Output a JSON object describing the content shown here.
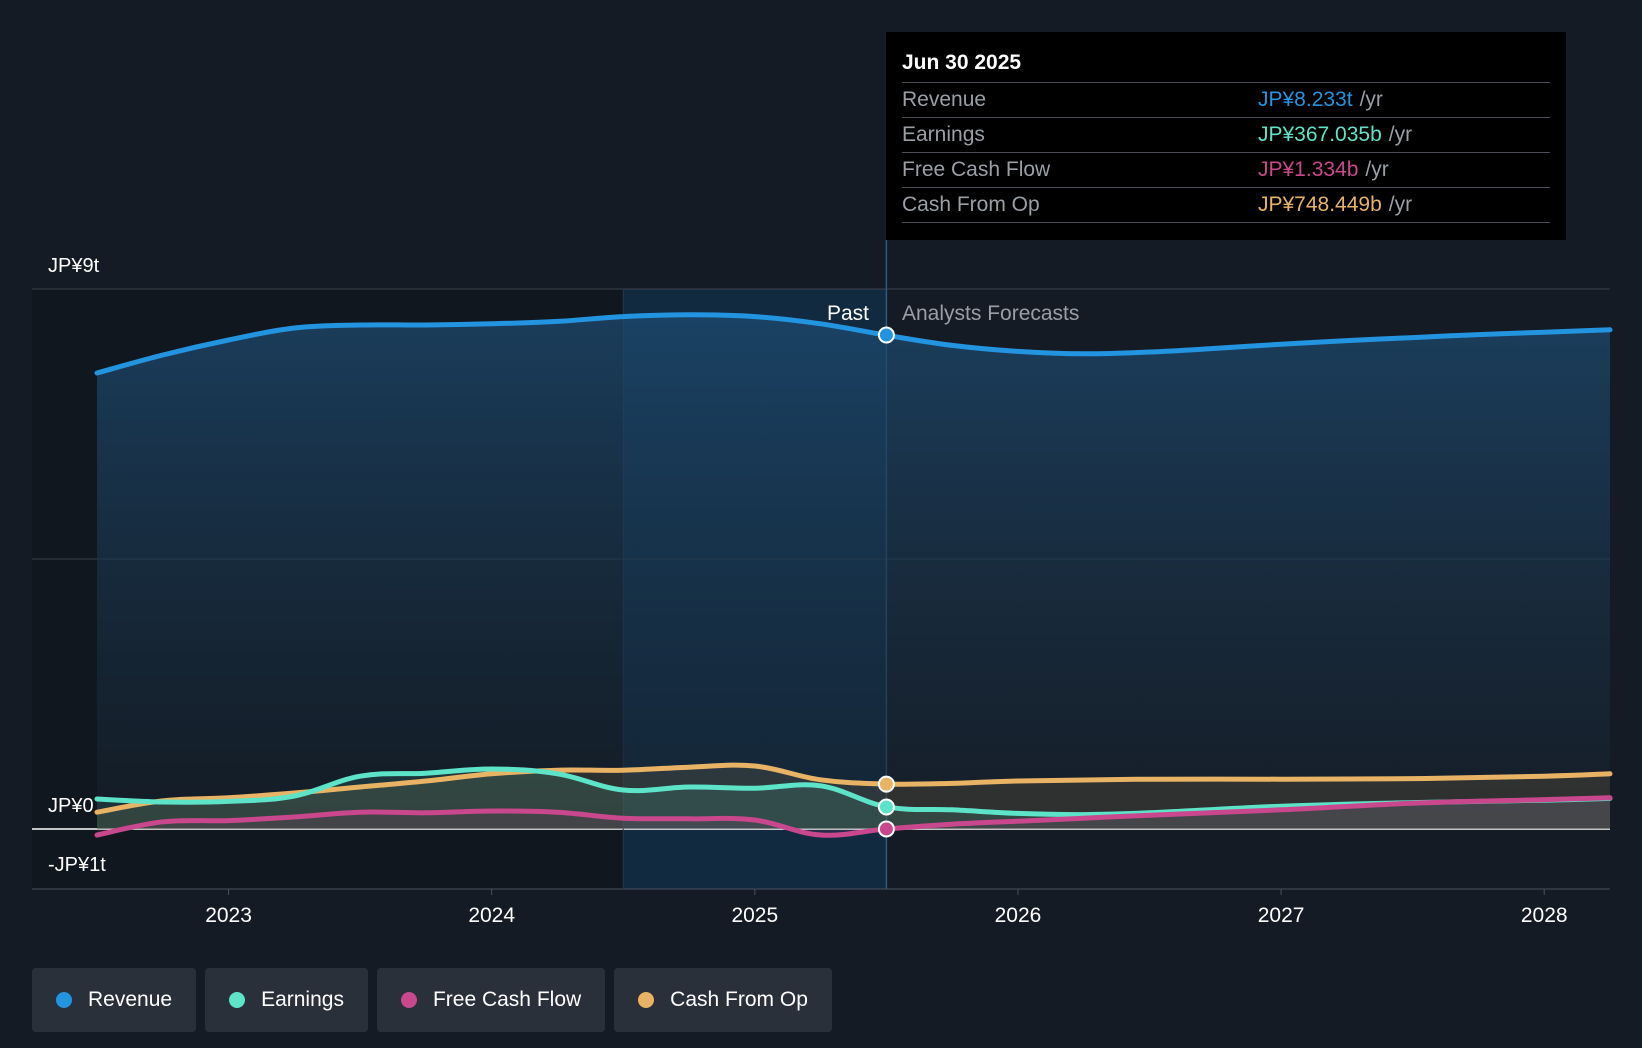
{
  "colors": {
    "revenue": "#2394df",
    "earnings": "#5de3c8",
    "free_cash_flow": "#c9478d",
    "cash_from_op": "#e8b364",
    "background": "#151b24"
  },
  "tooltip": {
    "date": "Jun 30 2025",
    "rows": [
      {
        "label": "Revenue",
        "value": "JP¥8.233t",
        "unit": "/yr"
      },
      {
        "label": "Earnings",
        "value": "JP¥367.035b",
        "unit": "/yr"
      },
      {
        "label": "Free Cash Flow",
        "value": "JP¥1.334b",
        "unit": "/yr"
      },
      {
        "label": "Cash From Op",
        "value": "JP¥748.449b",
        "unit": "/yr"
      }
    ]
  },
  "legend": [
    "Revenue",
    "Earnings",
    "Free Cash Flow",
    "Cash From Op"
  ],
  "chart_data": {
    "type": "area",
    "title": "",
    "unit": "JP¥ trillion",
    "xlim": [
      2022.5,
      2028.25
    ],
    "ylim": [
      -1,
      9
    ],
    "y_tick_labels": [
      {
        "value": 9,
        "label": "JP¥9t"
      },
      {
        "value": 0,
        "label": "JP¥0"
      },
      {
        "value": -1,
        "label": "-JP¥1t"
      }
    ],
    "x_ticks": [
      2023,
      2024,
      2025,
      2026,
      2027,
      2028
    ],
    "x_tick_labels": [
      "2023",
      "2024",
      "2025",
      "2026",
      "2027",
      "2028"
    ],
    "past_label": "Past",
    "forecast_label": "Analysts Forecasts",
    "divider_x": 2025.5,
    "highlight_start_x": 2024.5,
    "series": [
      {
        "name": "Revenue",
        "key": "revenue",
        "x": [
          2022.5,
          2022.75,
          2023.0,
          2023.25,
          2023.5,
          2023.75,
          2024.0,
          2024.25,
          2024.5,
          2024.75,
          2025.0,
          2025.25,
          2025.5,
          2025.75,
          2026.0,
          2026.25,
          2026.5,
          2026.75,
          2027.0,
          2027.25,
          2027.5,
          2027.75,
          2028.0,
          2028.25
        ],
        "values": [
          7.6,
          7.9,
          8.15,
          8.35,
          8.4,
          8.4,
          8.42,
          8.46,
          8.54,
          8.57,
          8.54,
          8.42,
          8.23,
          8.06,
          7.96,
          7.92,
          7.95,
          8.01,
          8.08,
          8.14,
          8.19,
          8.24,
          8.28,
          8.32
        ]
      },
      {
        "name": "Cash From Op",
        "key": "cash_from_op",
        "x": [
          2022.5,
          2022.75,
          2023.0,
          2023.25,
          2023.5,
          2023.75,
          2024.0,
          2024.25,
          2024.5,
          2024.75,
          2025.0,
          2025.25,
          2025.5,
          2025.75,
          2026.0,
          2026.5,
          2027.0,
          2027.5,
          2028.0,
          2028.25
        ],
        "values": [
          0.28,
          0.47,
          0.52,
          0.6,
          0.7,
          0.8,
          0.92,
          0.98,
          0.98,
          1.03,
          1.05,
          0.82,
          0.75,
          0.76,
          0.8,
          0.83,
          0.83,
          0.84,
          0.88,
          0.92
        ]
      },
      {
        "name": "Earnings",
        "key": "earnings",
        "x": [
          2022.5,
          2022.75,
          2023.0,
          2023.25,
          2023.5,
          2023.75,
          2024.0,
          2024.25,
          2024.5,
          2024.75,
          2025.0,
          2025.25,
          2025.5,
          2025.75,
          2026.0,
          2026.25,
          2026.5,
          2027.0,
          2027.5,
          2028.0,
          2028.25
        ],
        "values": [
          0.5,
          0.45,
          0.46,
          0.55,
          0.88,
          0.93,
          1.0,
          0.92,
          0.65,
          0.7,
          0.68,
          0.72,
          0.37,
          0.32,
          0.26,
          0.24,
          0.27,
          0.38,
          0.44,
          0.48,
          0.51
        ]
      },
      {
        "name": "Free Cash Flow",
        "key": "free_cash_flow",
        "x": [
          2022.5,
          2022.75,
          2023.0,
          2023.25,
          2023.5,
          2023.75,
          2024.0,
          2024.25,
          2024.5,
          2024.75,
          2025.0,
          2025.25,
          2025.5,
          2025.75,
          2026.0,
          2026.25,
          2026.5,
          2027.0,
          2027.5,
          2028.0,
          2028.25
        ],
        "values": [
          -0.1,
          0.12,
          0.14,
          0.2,
          0.28,
          0.27,
          0.3,
          0.28,
          0.18,
          0.17,
          0.15,
          -0.1,
          0.001,
          0.08,
          0.13,
          0.18,
          0.23,
          0.32,
          0.43,
          0.49,
          0.52
        ]
      }
    ],
    "highlight_points": [
      {
        "series": "Revenue",
        "x": 2025.5,
        "y": 8.233
      },
      {
        "series": "Cash From Op",
        "x": 2025.5,
        "y": 0.748
      },
      {
        "series": "Earnings",
        "x": 2025.5,
        "y": 0.367
      },
      {
        "series": "Free Cash Flow",
        "x": 2025.5,
        "y": 0.001
      }
    ]
  }
}
